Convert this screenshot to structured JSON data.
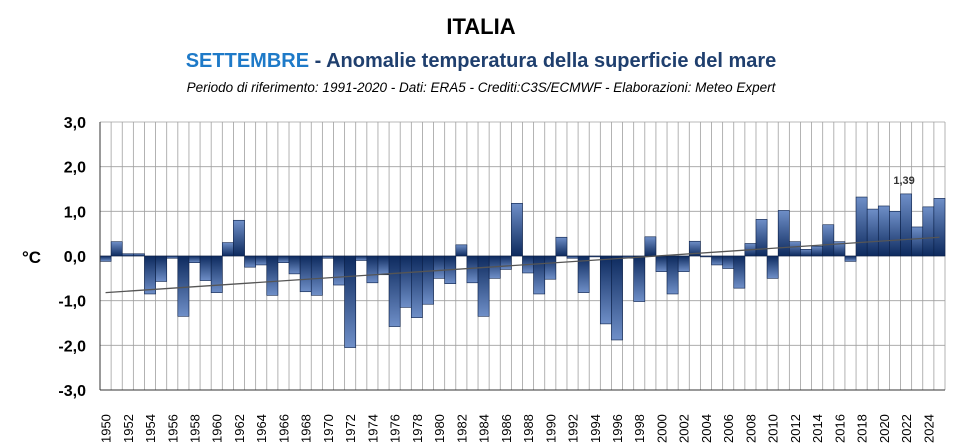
{
  "header": {
    "title": "ITALIA",
    "subtitle_month": "SETTEMBRE",
    "subtitle_rest": " - Anomalie temperatura della superficie del mare",
    "source": "Periodo di riferimento: 1991-2020 - Dati: ERA5 - Crediti:C3S/ECMWF - Elaborazioni: Meteo Expert"
  },
  "colors": {
    "accent": "#1e7ac8",
    "subtitle": "#1f3f6e",
    "bar_dark": "#0d2a5e",
    "bar_light": "#6f8fc8",
    "grid": "#a0a0a0",
    "trend": "#555555"
  },
  "chart_data": {
    "type": "bar",
    "title": "ITALIA",
    "subtitle": "SETTEMBRE - Anomalie temperatura della superficie del mare",
    "ylabel": "°C",
    "xlabel": "",
    "ylim": [
      -3,
      3
    ],
    "yticks": [
      "3,0",
      "2,0",
      "1,0",
      "0,0",
      "-1,0",
      "-2,0",
      "-3,0"
    ],
    "ytick_values": [
      3,
      2,
      1,
      0,
      -1,
      -2,
      -3
    ],
    "grid": true,
    "legend": "none",
    "categories": [
      1950,
      1951,
      1952,
      1953,
      1954,
      1955,
      1956,
      1957,
      1958,
      1959,
      1960,
      1961,
      1962,
      1963,
      1964,
      1965,
      1966,
      1967,
      1968,
      1969,
      1970,
      1971,
      1972,
      1973,
      1974,
      1975,
      1976,
      1977,
      1978,
      1979,
      1980,
      1981,
      1982,
      1983,
      1984,
      1985,
      1986,
      1987,
      1988,
      1989,
      1990,
      1991,
      1992,
      1993,
      1994,
      1995,
      1996,
      1997,
      1998,
      1999,
      2000,
      2001,
      2002,
      2003,
      2004,
      2005,
      2006,
      2007,
      2008,
      2009,
      2010,
      2011,
      2012,
      2013,
      2014,
      2015,
      2016,
      2017,
      2018,
      2019,
      2020,
      2021,
      2022,
      2023,
      2024,
      2025
    ],
    "xtick_labels": [
      "1950",
      "1952",
      "1954",
      "1956",
      "1958",
      "1960",
      "1962",
      "1964",
      "1966",
      "1968",
      "1970",
      "1972",
      "1974",
      "1976",
      "1978",
      "1980",
      "1982",
      "1984",
      "1986",
      "1988",
      "1990",
      "1992",
      "1994",
      "1996",
      "1998",
      "2000",
      "2002",
      "2004",
      "2006",
      "2008",
      "2010",
      "2012",
      "2014",
      "2016",
      "2018",
      "2020",
      "2022",
      "2024"
    ],
    "values": [
      -0.12,
      0.32,
      0.05,
      0.05,
      -0.85,
      -0.57,
      -0.05,
      -1.35,
      -0.15,
      -0.55,
      -0.82,
      0.3,
      0.8,
      -0.25,
      -0.2,
      -0.88,
      -0.15,
      -0.4,
      -0.8,
      -0.88,
      -0.05,
      -0.65,
      -2.05,
      -0.1,
      -0.6,
      -0.42,
      -1.58,
      -1.15,
      -1.38,
      -1.08,
      -0.5,
      -0.62,
      0.25,
      -0.6,
      -1.35,
      -0.5,
      -0.3,
      1.18,
      -0.38,
      -0.85,
      -0.52,
      0.42,
      -0.05,
      -0.82,
      -0.02,
      -1.52,
      -1.88,
      -0.05,
      -1.02,
      0.43,
      -0.35,
      -0.85,
      -0.35,
      0.33,
      -0.02,
      -0.2,
      -0.28,
      -0.72,
      0.28,
      0.82,
      -0.5,
      1.02,
      0.32,
      0.15,
      0.22,
      0.7,
      0.32,
      -0.12,
      1.32,
      1.05,
      1.12,
      1.0,
      1.39,
      0.65,
      1.1,
      1.29
    ],
    "trend": {
      "start": -0.82,
      "end": 0.42
    },
    "annotations": [
      {
        "year": 2022,
        "label": "1,39"
      }
    ]
  }
}
